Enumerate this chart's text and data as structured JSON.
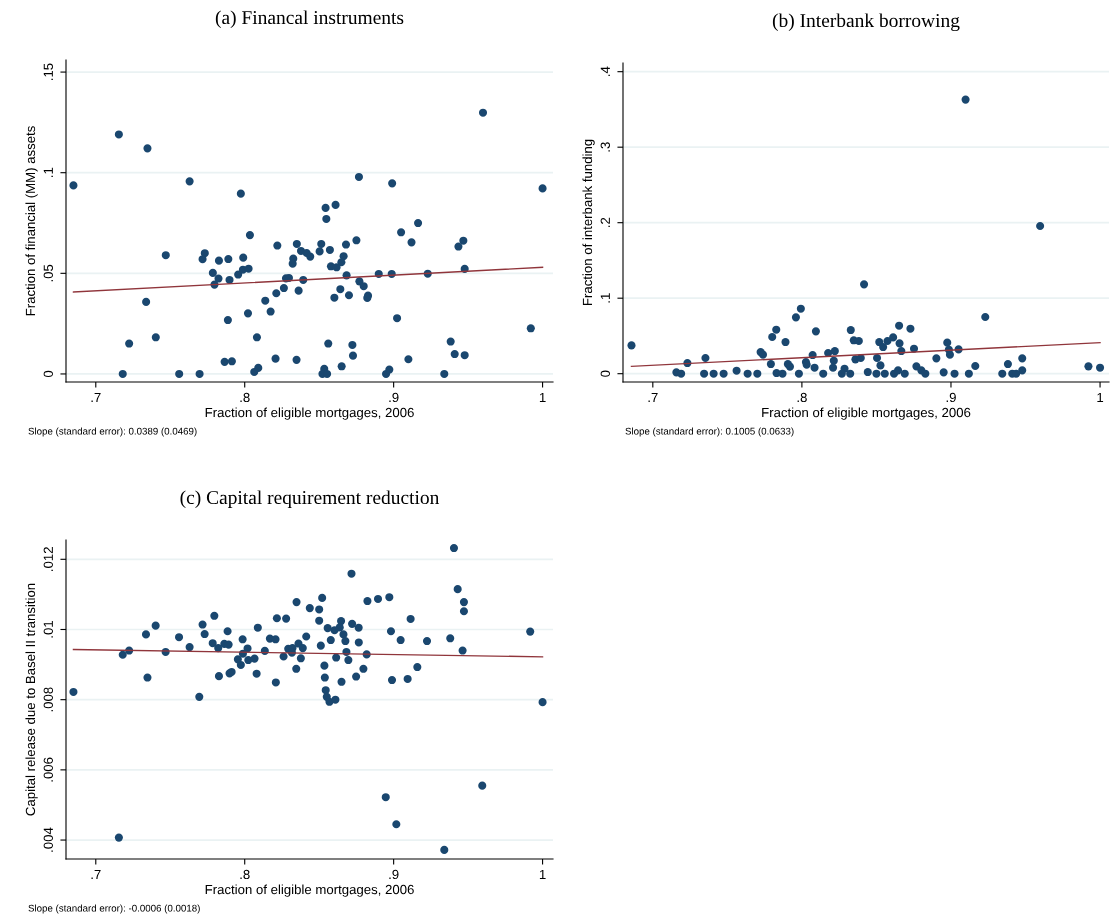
{
  "chart_data": [
    {
      "type": "scatter",
      "title": "(a) Financal instruments",
      "xlabel": "Fraction of eligible mortgages, 2006",
      "ylabel": "Fraction of financial (MM) assets",
      "annotations": [
        "Slope (standard error): 0.0389 (0.0469)"
      ],
      "xlim": [
        0.68,
        1.007
      ],
      "ylim": [
        -0.004,
        0.156
      ],
      "xticks": [
        {
          "value": 0.7,
          "label": ".7"
        },
        {
          "value": 0.8,
          "label": ".8"
        },
        {
          "value": 0.9,
          "label": ".9"
        },
        1
      ],
      "yticks": [
        0,
        {
          "value": 0.05,
          "label": ".05"
        },
        {
          "value": 0.1,
          "label": ".1"
        },
        {
          "value": 0.15,
          "label": ".15"
        }
      ],
      "grid": "y",
      "series": [
        {
          "marker": "circle",
          "color": "#1a476f",
          "x": [
            0.685,
            0.7155,
            0.7347,
            0.763,
            0.7974,
            0.96,
            0.8767,
            0.899,
            1.0,
            0.8543,
            0.861,
            0.8548,
            0.8035,
            0.9164,
            0.905,
            0.912,
            0.9468,
            0.9435,
            0.9477,
            0.747,
            0.7732,
            0.7717,
            0.7827,
            0.789,
            0.799,
            0.8219,
            0.835,
            0.8514,
            0.8378,
            0.8416,
            0.844,
            0.8503,
            0.8326,
            0.8322,
            0.8572,
            0.868,
            0.875,
            0.8664,
            0.8649,
            0.8579,
            0.8617,
            0.7786,
            0.7824,
            0.7797,
            0.7898,
            0.7956,
            0.7988,
            0.8026,
            0.8277,
            0.8297,
            0.8393,
            0.8684,
            0.877,
            0.8799,
            0.89,
            0.8987,
            0.9229,
            0.8263,
            0.8212,
            0.8362,
            0.8642,
            0.8602,
            0.87,
            0.8828,
            0.8823,
            0.8138,
            0.8174,
            0.8022,
            0.7338,
            0.7887,
            0.9023,
            0.7224,
            0.7403,
            0.8082,
            0.8561,
            0.8723,
            0.8727,
            0.9921,
            0.9383,
            0.941,
            0.9477,
            0.9099,
            0.7865,
            0.7914,
            0.8207,
            0.8348,
            0.8651,
            0.8091,
            0.8064,
            0.7181,
            0.756,
            0.7697,
            0.8534,
            0.8522,
            0.8553,
            0.8949,
            0.8971,
            0.934
          ],
          "values": [
            0.0937,
            0.119,
            0.1121,
            0.0957,
            0.0896,
            0.1298,
            0.0979,
            0.0947,
            0.0922,
            0.0825,
            0.084,
            0.077,
            0.069,
            0.075,
            0.0704,
            0.0654,
            0.0662,
            0.0633,
            0.0522,
            0.059,
            0.06,
            0.057,
            0.0563,
            0.0571,
            0.0578,
            0.0638,
            0.0646,
            0.0646,
            0.0611,
            0.0601,
            0.0583,
            0.0609,
            0.0573,
            0.0548,
            0.0616,
            0.0643,
            0.0664,
            0.0585,
            0.0555,
            0.0535,
            0.053,
            0.0502,
            0.0474,
            0.0444,
            0.0467,
            0.0494,
            0.0518,
            0.0523,
            0.0475,
            0.0477,
            0.0467,
            0.049,
            0.046,
            0.0436,
            0.0497,
            0.0497,
            0.0498,
            0.0427,
            0.0401,
            0.0414,
            0.0421,
            0.0379,
            0.0391,
            0.0389,
            0.0378,
            0.0364,
            0.031,
            0.0301,
            0.0358,
            0.0268,
            0.0277,
            0.0151,
            0.0182,
            0.0182,
            0.0151,
            0.0144,
            0.0091,
            0.0227,
            0.0161,
            0.0099,
            0.0093,
            0.0073,
            0.006,
            0.0063,
            0.0076,
            0.007,
            0.0038,
            0.003,
            0.001,
            0,
            0,
            0,
            0.0025,
            0,
            0,
            0,
            0.0022,
            0
          ]
        },
        {
          "type": "line",
          "color": "#90353b",
          "x": [
            0.685,
            1.0
          ],
          "values": [
            0.0407,
            0.053
          ]
        }
      ]
    },
    {
      "type": "scatter",
      "title": "(b) Interbank borrowing",
      "xlabel": "Fraction of eligible mortgages, 2006",
      "ylabel": "Fraction of interbank funding",
      "annotations": [
        "Slope (standard error): 0.1005 (0.0633)"
      ],
      "xlim": [
        0.68,
        1.006
      ],
      "ylim": [
        -0.011,
        0.4115
      ],
      "xticks": [
        {
          "value": 0.7,
          "label": ".7"
        },
        {
          "value": 0.8,
          "label": ".8"
        },
        {
          "value": 0.9,
          "label": ".9"
        },
        1
      ],
      "yticks": [
        0,
        {
          "value": 0.1,
          "label": ".1"
        },
        {
          "value": 0.2,
          "label": ".2"
        },
        {
          "value": 0.3,
          "label": ".3"
        },
        {
          "value": 0.4,
          "label": ".4"
        }
      ],
      "grid": "y",
      "series": [
        {
          "marker": "circle",
          "color": "#1a476f",
          "x": [
            0.6857,
            0.9098,
            0.9598,
            0.8417,
            0.7993,
            0.796,
            0.923,
            0.7828,
            0.7801,
            0.789,
            0.8094,
            0.8328,
            0.8652,
            0.8728,
            0.8348,
            0.8382,
            0.8519,
            0.8574,
            0.8612,
            0.8655,
            0.8545,
            0.8752,
            0.8667,
            0.8975,
            0.8986,
            0.8993,
            0.9051,
            0.7353,
            0.7232,
            0.7723,
            0.7739,
            0.7792,
            0.7906,
            0.792,
            0.8027,
            0.8032,
            0.8072,
            0.8085,
            0.8176,
            0.8221,
            0.8214,
            0.8209,
            0.8286,
            0.8359,
            0.8395,
            0.8504,
            0.8527,
            0.8902,
            0.9163,
            0.9382,
            0.9478,
            0.9922,
            1.0,
            0.9478,
            0.7158,
            0.719,
            0.7344,
            0.7408,
            0.7475,
            0.7562,
            0.7636,
            0.7701,
            0.783,
            0.787,
            0.798,
            0.8143,
            0.8268,
            0.8324,
            0.8442,
            0.85,
            0.8556,
            0.8618,
            0.8645,
            0.869,
            0.8768,
            0.8801,
            0.8828,
            0.8951,
            0.9024,
            0.912,
            0.9344,
            0.9411,
            0.9437
          ],
          "values": [
            0.0375,
            0.363,
            0.1956,
            0.1183,
            0.0861,
            0.0746,
            0.0751,
            0.0583,
            0.0486,
            0.0419,
            0.0561,
            0.0578,
            0.0636,
            0.0596,
            0.0442,
            0.0433,
            0.0419,
            0.0433,
            0.0481,
            0.0402,
            0.0353,
            0.0331,
            0.03,
            0.0411,
            0.0318,
            0.0252,
            0.0322,
            0.0208,
            0.0141,
            0.0287,
            0.0252,
            0.0128,
            0.0128,
            0.0093,
            0.0155,
            0.0119,
            0.0247,
            0.0079,
            0.0274,
            0.03,
            0.0172,
            0.0079,
            0.0066,
            0.019,
            0.0208,
            0.0208,
            0.011,
            0.0203,
            0.0102,
            0.0128,
            0.0203,
            0.0097,
            0.0079,
            0.0044,
            0.0018,
            0,
            0,
            0,
            0,
            0.004,
            0,
            0,
            0.0009,
            0,
            0,
            0,
            0,
            0,
            0.0022,
            0,
            0,
            0,
            0.0044,
            0,
            0.0097,
            0.0044,
            0,
            0.0018,
            0,
            0,
            0,
            0,
            0
          ]
        },
        {
          "type": "line",
          "color": "#90353b",
          "x": [
            0.6857,
            1.0
          ],
          "values": [
            0.0097,
            0.0411
          ]
        }
      ]
    },
    {
      "type": "scatter",
      "title": "(c) Capital requirement reduction",
      "xlabel": "Fraction of eligible mortgages, 2006",
      "ylabel": "Capital release due to Basel II transition",
      "annotations": [
        "Slope (standard error): -0.0006 (0.0018)"
      ],
      "xlim": [
        0.68,
        1.007
      ],
      "ylim": [
        0.00346,
        0.01255
      ],
      "xticks": [
        {
          "value": 0.7,
          "label": ".7"
        },
        {
          "value": 0.8,
          "label": ".8"
        },
        {
          "value": 0.9,
          "label": ".9"
        },
        1
      ],
      "yticks": [
        {
          "value": 0.004,
          "label": ".004"
        },
        {
          "value": 0.006,
          "label": ".006"
        },
        {
          "value": 0.008,
          "label": ".008"
        },
        {
          "value": 0.01,
          "label": ".01"
        },
        {
          "value": 0.012,
          "label": ".012"
        }
      ],
      "grid": "y",
      "series": [
        {
          "marker": "circle",
          "color": "#1a476f",
          "x": [
            0.685,
            0.7155,
            0.9405,
            0.8717,
            0.943,
            0.9472,
            0.9472,
            0.8824,
            0.8895,
            0.8971,
            0.852,
            0.8348,
            0.8437,
            0.85,
            0.7796,
            0.7717,
            0.7402,
            0.7337,
            0.8216,
            0.8278,
            0.85,
            0.8647,
            0.8721,
            0.8088,
            0.8557,
            0.8638,
            0.8765,
            0.9114,
            0.8982,
            0.9917,
            0.7885,
            0.8603,
            0.8663,
            0.7559,
            0.7731,
            0.7986,
            0.8169,
            0.8207,
            0.8413,
            0.8578,
            0.8676,
            0.8766,
            0.9047,
            0.9224,
            0.938,
            0.9463,
            0.7785,
            0.7863,
            0.7892,
            0.7822,
            0.763,
            0.7181,
            0.7224,
            0.7469,
            0.8019,
            0.8135,
            0.7988,
            0.7954,
            0.7974,
            0.8024,
            0.8066,
            0.8292,
            0.8321,
            0.8361,
            0.839,
            0.8511,
            0.8261,
            0.8317,
            0.8377,
            0.8683,
            0.8819,
            0.8614,
            0.8696,
            0.8535,
            0.8346,
            0.8797,
            0.9159,
            0.7347,
            0.7827,
            0.7898,
            0.7912,
            0.808,
            0.8209,
            0.8538,
            0.865,
            0.8748,
            0.8989,
            0.9094,
            0.7695,
            0.8544,
            0.8551,
            0.8569,
            0.8609,
            1.0,
            0.8947,
            0.9595,
            0.9018,
            0.934
          ],
          "values": [
            0.00822,
            0.00407,
            0.01232,
            0.01159,
            0.01115,
            0.01078,
            0.01052,
            0.01081,
            0.01087,
            0.01092,
            0.0109,
            0.01078,
            0.01061,
            0.01057,
            0.01039,
            0.01014,
            0.01011,
            0.00986,
            0.01032,
            0.01031,
            0.01025,
            0.01024,
            0.01016,
            0.01005,
            0.01004,
            0.01006,
            0.01005,
            0.0103,
            0.00995,
            0.00994,
            0.00995,
            0.00998,
            0.00986,
            0.00978,
            0.00987,
            0.00972,
            0.00974,
            0.00972,
            0.0098,
            0.0097,
            0.00967,
            0.00963,
            0.0097,
            0.00967,
            0.00975,
            0.0094,
            0.00961,
            0.00959,
            0.00957,
            0.00947,
            0.0095,
            0.00928,
            0.0094,
            0.00936,
            0.00946,
            0.00939,
            0.00931,
            0.00915,
            0.00899,
            0.00913,
            0.00917,
            0.00945,
            0.00947,
            0.0096,
            0.00947,
            0.00954,
            0.00923,
            0.00934,
            0.00918,
            0.00936,
            0.00929,
            0.0092,
            0.00913,
            0.00897,
            0.00888,
            0.00888,
            0.00893,
            0.00863,
            0.00867,
            0.00875,
            0.00879,
            0.00874,
            0.00849,
            0.00863,
            0.00851,
            0.00866,
            0.00856,
            0.00859,
            0.00808,
            0.00827,
            0.00808,
            0.00794,
            0.008,
            0.00793,
            0.00522,
            0.00555,
            0.00445,
            0.00372
          ]
        },
        {
          "type": "line",
          "color": "#90353b",
          "x": [
            0.685,
            1.0
          ],
          "values": [
            0.00943,
            0.00922
          ]
        }
      ]
    }
  ]
}
